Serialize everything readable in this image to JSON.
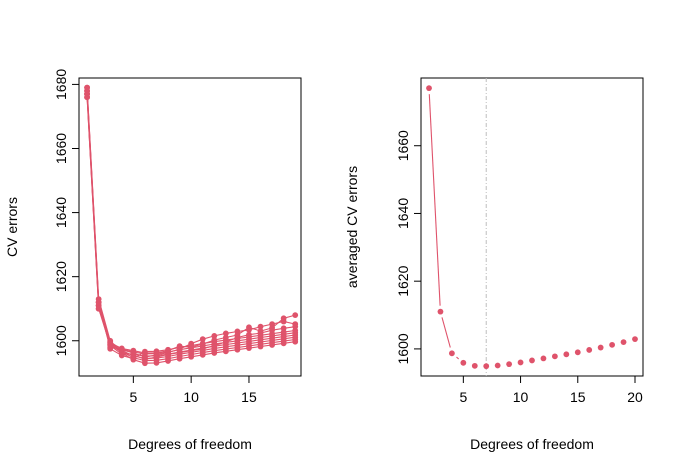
{
  "chart_data": [
    {
      "type": "line",
      "xlabel": "Degrees of freedom",
      "ylabel": "CV errors",
      "xlim": [
        0.3,
        19.5
      ],
      "ylim": [
        1589,
        1682
      ],
      "x_ticks": [
        5,
        10,
        15
      ],
      "y_ticks": [
        1600,
        1620,
        1640,
        1660,
        1680
      ],
      "color": "#DF536B",
      "x": [
        1,
        2,
        3,
        4,
        5,
        6,
        7,
        8,
        9,
        10,
        11,
        12,
        13,
        14,
        15,
        16,
        17,
        18,
        19
      ],
      "series": [
        {
          "values": [
            1679,
            1613,
            1600.0,
            1596.2,
            1594.1,
            1593.0,
            1593.1,
            1593.7,
            1594.4,
            1595.0,
            1595.6,
            1596.2,
            1596.7,
            1597.2,
            1597.7,
            1598.2,
            1598.7,
            1599.2,
            1599.7
          ]
        },
        {
          "values": [
            1678,
            1612,
            1599.5,
            1596.6,
            1594.7,
            1593.8,
            1593.9,
            1594.4,
            1595.1,
            1595.7,
            1596.3,
            1596.9,
            1597.4,
            1597.9,
            1598.4,
            1598.9,
            1599.4,
            1599.9,
            1600.4
          ]
        },
        {
          "values": [
            1677,
            1611,
            1599.0,
            1597.0,
            1595.3,
            1594.5,
            1594.6,
            1595.1,
            1595.8,
            1596.4,
            1597.0,
            1597.6,
            1598.1,
            1598.6,
            1599.1,
            1599.6,
            1600.1,
            1600.6,
            1601.1
          ]
        },
        {
          "values": [
            1676,
            1610,
            1598.5,
            1595.8,
            1595.9,
            1595.2,
            1595.3,
            1595.8,
            1596.5,
            1597.1,
            1597.7,
            1598.3,
            1598.8,
            1599.3,
            1599.8,
            1600.3,
            1600.8,
            1601.3,
            1601.8
          ]
        },
        {
          "values": [
            1677,
            1611,
            1598.0,
            1597.4,
            1596.5,
            1595.9,
            1596.0,
            1596.5,
            1597.2,
            1597.8,
            1598.4,
            1599.0,
            1599.5,
            1600.0,
            1600.5,
            1601.0,
            1601.5,
            1602.0,
            1602.5
          ]
        },
        {
          "values": [
            1678,
            1612,
            1597.5,
            1595.4,
            1594.4,
            1596.6,
            1596.7,
            1597.2,
            1597.9,
            1598.5,
            1599.1,
            1599.7,
            1600.2,
            1600.7,
            1601.2,
            1601.7,
            1602.2,
            1602.7,
            1603.2
          ]
        },
        {
          "values": [
            1677,
            1611,
            1598.8,
            1596.4,
            1595.6,
            1594.2,
            1594.9,
            1595.7,
            1596.3,
            1596.9,
            1597.5,
            1598.5,
            1599.6,
            1601.0,
            1601.9,
            1602.4,
            1603.3,
            1603.9,
            1604.4
          ]
        },
        {
          "values": [
            1676,
            1610,
            1599.7,
            1597.2,
            1596.2,
            1594.9,
            1595.6,
            1596.3,
            1597.4,
            1599.1,
            1600.5,
            1601.5,
            1602.3,
            1602.9,
            1603.4,
            1604.4,
            1605.2,
            1606.0,
            1605.2
          ]
        },
        {
          "values": [
            1679,
            1612,
            1599.3,
            1597.6,
            1596.9,
            1596.2,
            1596.2,
            1596.9,
            1598.3,
            1598.0,
            1599.0,
            1600.2,
            1601.0,
            1601.8,
            1604.2,
            1603.0,
            1604.0,
            1607.0,
            1608.0
          ]
        }
      ]
    },
    {
      "type": "scatter",
      "xlabel": "Degrees of freedom",
      "ylabel": "averaged CV errors",
      "xlim": [
        1.3,
        20.7
      ],
      "ylim": [
        1592,
        1680
      ],
      "x_ticks": [
        5,
        10,
        15,
        20
      ],
      "y_ticks": [
        1600,
        1620,
        1640,
        1660
      ],
      "vline_x": 7,
      "vline_color": "#BEBEBE",
      "color": "#DF536B",
      "x": [
        2,
        3,
        4,
        5,
        6,
        7,
        8,
        9,
        10,
        11,
        12,
        13,
        14,
        15,
        16,
        17,
        18,
        19,
        20
      ],
      "values": [
        1677,
        1611,
        1598.7,
        1595.9,
        1595.0,
        1594.9,
        1595.1,
        1595.5,
        1596.0,
        1596.6,
        1597.2,
        1597.8,
        1598.4,
        1599.0,
        1599.7,
        1600.4,
        1601.2,
        1602.0,
        1602.9
      ]
    }
  ]
}
